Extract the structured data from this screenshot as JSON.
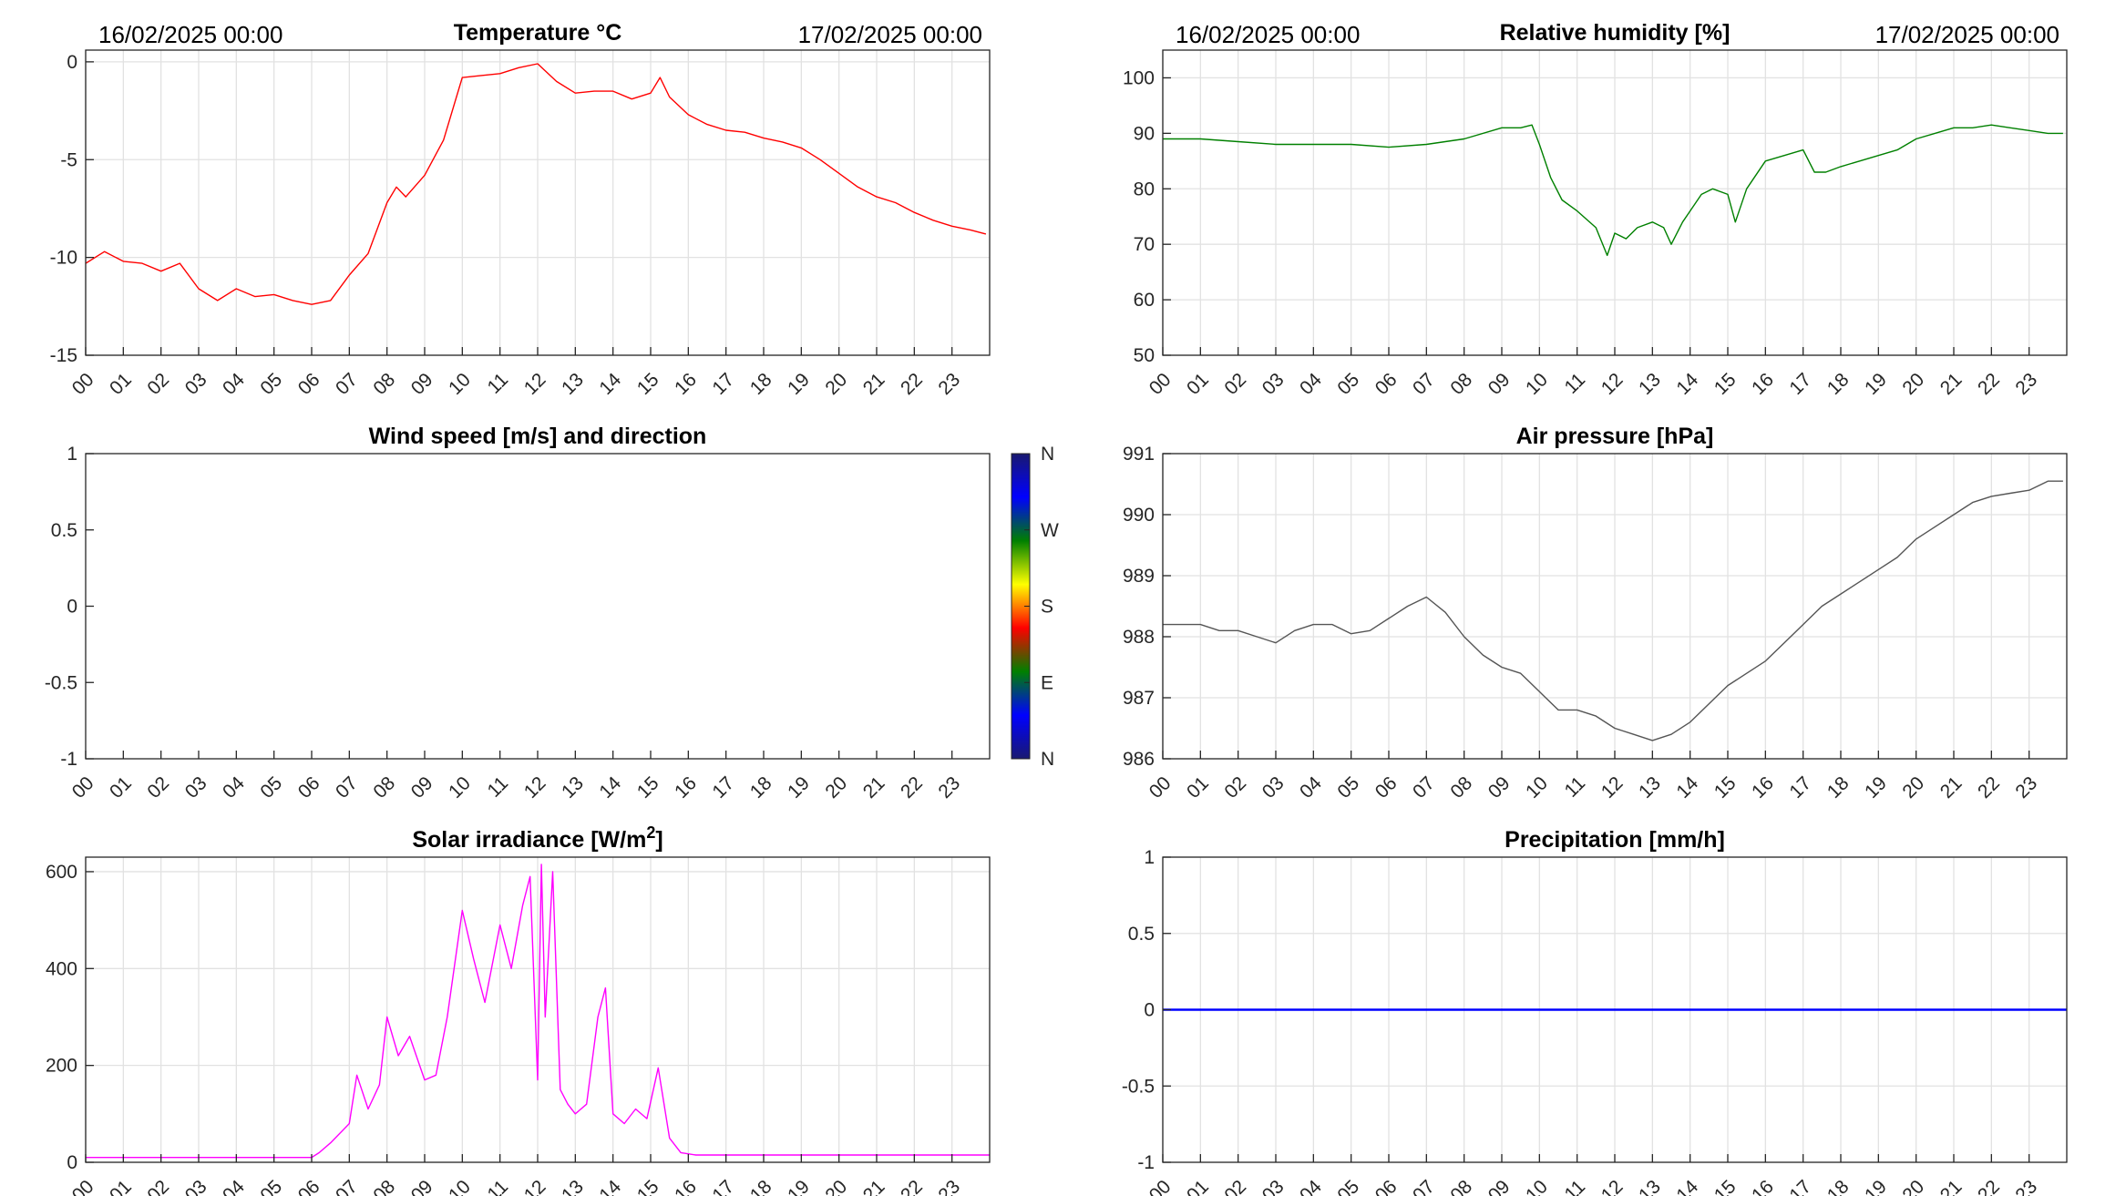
{
  "hour_labels": [
    "00",
    "01",
    "02",
    "03",
    "04",
    "05",
    "06",
    "07",
    "08",
    "09",
    "10",
    "11",
    "12",
    "13",
    "14",
    "15",
    "16",
    "17",
    "18",
    "19",
    "20",
    "21",
    "22",
    "23"
  ],
  "chart_data": [
    {
      "id": "temperature",
      "type": "line",
      "title": "Temperature °C",
      "date_start": "16/02/2025 00:00",
      "date_end": "17/02/2025 00:00",
      "color": "#ff0000",
      "ylim": [
        -15,
        0.6
      ],
      "yticks": [
        0,
        -5,
        -10,
        -15
      ],
      "ytick_labels": [
        "0",
        "-5",
        "-10",
        "-15"
      ],
      "grid": true,
      "x": [
        0,
        0.5,
        1,
        1.5,
        2,
        2.5,
        3,
        3.5,
        4,
        4.5,
        5,
        5.5,
        6,
        6.5,
        7,
        7.5,
        8,
        8.25,
        8.5,
        9,
        9.5,
        10,
        10.5,
        11,
        11.5,
        12,
        12.5,
        13,
        13.5,
        14,
        14.5,
        15,
        15.25,
        15.5,
        16,
        16.5,
        17,
        17.5,
        18,
        18.5,
        19,
        19.5,
        20,
        20.5,
        21,
        21.5,
        22,
        22.5,
        23,
        23.5,
        23.9
      ],
      "y": [
        -10.3,
        -9.7,
        -10.2,
        -10.3,
        -10.7,
        -10.3,
        -11.6,
        -12.2,
        -11.6,
        -12.0,
        -11.9,
        -12.2,
        -12.4,
        -12.2,
        -10.9,
        -9.8,
        -7.2,
        -6.4,
        -6.9,
        -5.8,
        -4.0,
        -0.8,
        -0.7,
        -0.6,
        -0.3,
        -0.1,
        -1.0,
        -1.6,
        -1.5,
        -1.5,
        -1.9,
        -1.6,
        -0.8,
        -1.8,
        -2.7,
        -3.2,
        -3.5,
        -3.6,
        -3.9,
        -4.1,
        -4.4,
        -5.0,
        -5.7,
        -6.4,
        -6.9,
        -7.2,
        -7.7,
        -8.1,
        -8.4,
        -8.6,
        -8.8
      ]
    },
    {
      "id": "humidity",
      "type": "line",
      "title": "Relative humidity [%]",
      "date_start": "16/02/2025 00:00",
      "date_end": "17/02/2025 00:00",
      "color": "#008000",
      "ylim": [
        50,
        105
      ],
      "yticks": [
        100,
        90,
        80,
        70,
        60,
        50
      ],
      "ytick_labels": [
        "100",
        "90",
        "80",
        "70",
        "60",
        "50"
      ],
      "grid": true,
      "x": [
        0,
        1,
        2,
        3,
        4,
        5,
        6,
        7,
        8,
        9,
        9.5,
        9.8,
        10,
        10.3,
        10.6,
        11,
        11.5,
        11.8,
        12,
        12.3,
        12.6,
        13,
        13.3,
        13.5,
        13.8,
        14,
        14.3,
        14.6,
        15,
        15.2,
        15.5,
        16,
        16.5,
        17,
        17.3,
        17.6,
        18,
        18.5,
        19,
        19.5,
        20,
        20.5,
        21,
        21.5,
        22,
        22.5,
        23,
        23.5,
        23.9
      ],
      "y": [
        89,
        89,
        88.5,
        88,
        88,
        88,
        87.5,
        88,
        89,
        91,
        91,
        91.5,
        88,
        82,
        78,
        76,
        73,
        68,
        72,
        71,
        73,
        74,
        73,
        70,
        74,
        76,
        79,
        80,
        79,
        74,
        80,
        85,
        86,
        87,
        83,
        83,
        84,
        85,
        86,
        87,
        89,
        90,
        91,
        91,
        91.5,
        91,
        90.5,
        90,
        90
      ]
    },
    {
      "id": "wind",
      "type": "scatter",
      "title": "Wind speed [m/s] and direction",
      "ylim": [
        -1,
        1
      ],
      "yticks": [
        1,
        0.5,
        0,
        -0.5,
        -1
      ],
      "ytick_labels": [
        "1",
        "0.5",
        "0",
        "-0.5",
        "-1"
      ],
      "grid": false,
      "x": [],
      "y": [],
      "colorbar": {
        "labels": [
          "N",
          "W",
          "S",
          "E",
          "N"
        ],
        "colors": [
          "#191970",
          "#0000ff",
          "#008000",
          "#ffff00",
          "#ff0000",
          "#008000",
          "#0000ff",
          "#191970"
        ]
      }
    },
    {
      "id": "pressure",
      "type": "line",
      "title": "Air pressure [hPa]",
      "color": "#555555",
      "ylim": [
        986,
        991
      ],
      "yticks": [
        991,
        990,
        989,
        988,
        987,
        986
      ],
      "ytick_labels": [
        "991",
        "990",
        "989",
        "988",
        "987",
        "986"
      ],
      "grid": true,
      "x": [
        0,
        0.5,
        1,
        1.5,
        2,
        2.5,
        3,
        3.5,
        4,
        4.5,
        5,
        5.5,
        6,
        6.5,
        7,
        7.5,
        8,
        8.5,
        9,
        9.5,
        10,
        10.5,
        11,
        11.5,
        12,
        12.5,
        13,
        13.5,
        14,
        14.5,
        15,
        15.5,
        16,
        16.5,
        17,
        17.5,
        18,
        18.5,
        19,
        19.5,
        20,
        20.5,
        21,
        21.5,
        22,
        22.5,
        23,
        23.5,
        23.9
      ],
      "y": [
        988.2,
        988.2,
        988.2,
        988.1,
        988.1,
        988.0,
        987.9,
        988.1,
        988.2,
        988.2,
        988.05,
        988.1,
        988.3,
        988.5,
        988.65,
        988.4,
        988.0,
        987.7,
        987.5,
        987.4,
        987.1,
        986.8,
        986.8,
        986.7,
        986.5,
        986.4,
        986.3,
        986.4,
        986.6,
        986.9,
        987.2,
        987.4,
        987.6,
        987.9,
        988.2,
        988.5,
        988.7,
        988.9,
        989.1,
        989.3,
        989.6,
        989.8,
        990.0,
        990.2,
        990.3,
        990.35,
        990.4,
        990.55,
        990.55
      ]
    },
    {
      "id": "solar",
      "type": "line",
      "title": "Solar irradiance [W/m²]",
      "title_main": "Solar irradiance [W/m",
      "title_sup": "2",
      "title_end": "]",
      "color": "#ff00ff",
      "ylim": [
        0,
        630
      ],
      "yticks": [
        600,
        400,
        200,
        0
      ],
      "ytick_labels": [
        "600",
        "400",
        "200",
        "0"
      ],
      "grid": true,
      "x": [
        0,
        6,
        6.2,
        6.5,
        7,
        7.2,
        7.5,
        7.8,
        8,
        8.3,
        8.6,
        9,
        9.3,
        9.6,
        10,
        10.3,
        10.6,
        11,
        11.3,
        11.6,
        11.8,
        12,
        12.1,
        12.2,
        12.4,
        12.6,
        12.8,
        13,
        13.3,
        13.6,
        13.8,
        14,
        14.3,
        14.6,
        14.9,
        15.2,
        15.5,
        15.8,
        16.2,
        17,
        19,
        24
      ],
      "y": [
        10,
        10,
        20,
        40,
        80,
        180,
        110,
        160,
        300,
        220,
        260,
        170,
        180,
        300,
        520,
        420,
        330,
        490,
        400,
        530,
        590,
        170,
        615,
        300,
        600,
        150,
        120,
        100,
        120,
        300,
        360,
        100,
        80,
        110,
        90,
        195,
        50,
        20,
        15,
        15,
        15,
        15
      ]
    },
    {
      "id": "precipitation",
      "type": "line",
      "title": "Precipitation [mm/h]",
      "color": "#0000ff",
      "ylim": [
        -1,
        1
      ],
      "yticks": [
        1,
        0.5,
        0,
        -0.5,
        -1
      ],
      "ytick_labels": [
        "1",
        "0.5",
        "0",
        "-0.5",
        "-1"
      ],
      "grid": true,
      "x": [
        0,
        24
      ],
      "y": [
        0,
        0
      ]
    }
  ]
}
